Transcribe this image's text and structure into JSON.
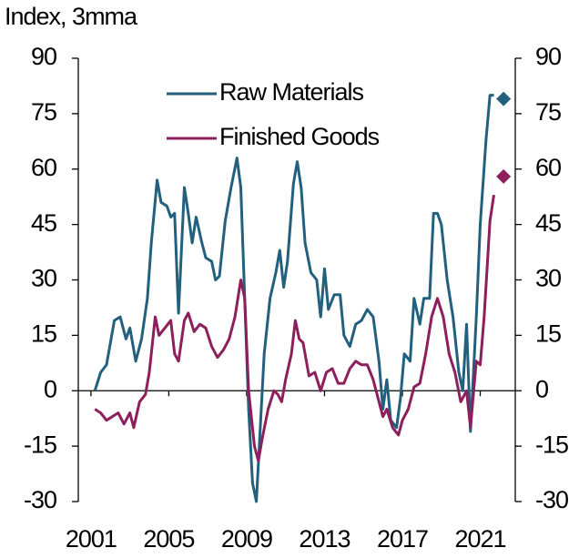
{
  "chart_data": {
    "type": "line",
    "y_label": "Index, 3mma",
    "xlim": [
      2000.35,
      2022.8
    ],
    "xticks": [
      2001,
      2005,
      2009,
      2013,
      2017,
      2021
    ],
    "ylim": [
      -30,
      90
    ],
    "yticks": [
      -30,
      -15,
      0,
      15,
      30,
      45,
      60,
      75,
      90
    ],
    "y2lim": [
      -30,
      90
    ],
    "y2ticks": [
      -30,
      -15,
      0,
      15,
      30,
      45,
      60,
      75,
      90
    ],
    "legend": "top",
    "series": [
      {
        "name": "Raw Materials",
        "color": "#23607d",
        "x": [
          2001.2,
          2001.5,
          2001.8,
          2002.2,
          2002.5,
          2002.8,
          2003.0,
          2003.3,
          2003.6,
          2003.9,
          2004.1,
          2004.4,
          2004.6,
          2004.9,
          2005.1,
          2005.3,
          2005.5,
          2005.8,
          2006.0,
          2006.2,
          2006.4,
          2006.7,
          2006.9,
          2007.2,
          2007.4,
          2007.6,
          2007.9,
          2008.2,
          2008.5,
          2008.7,
          2008.9,
          2009.1,
          2009.3,
          2009.5,
          2009.7,
          2009.9,
          2010.2,
          2010.5,
          2010.7,
          2010.9,
          2011.1,
          2011.4,
          2011.6,
          2011.8,
          2012.0,
          2012.3,
          2012.6,
          2012.8,
          2013.0,
          2013.2,
          2013.5,
          2013.8,
          2014.0,
          2014.3,
          2014.6,
          2014.9,
          2015.2,
          2015.5,
          2015.8,
          2016.0,
          2016.2,
          2016.4,
          2016.7,
          2016.9,
          2017.1,
          2017.4,
          2017.6,
          2017.9,
          2018.1,
          2018.4,
          2018.6,
          2018.8,
          2019.0,
          2019.3,
          2019.6,
          2019.9,
          2020.1,
          2020.3,
          2020.5,
          2020.8,
          2021.0,
          2021.3,
          2021.5,
          2021.7
        ],
        "values": [
          0,
          5,
          7,
          19,
          20,
          14,
          17,
          8,
          14,
          25,
          40,
          57,
          51,
          50,
          47,
          48,
          21,
          55,
          48,
          40,
          47,
          40,
          36,
          35,
          30,
          31,
          46,
          55,
          63,
          55,
          25,
          -5,
          -25,
          -30,
          -10,
          10,
          25,
          32,
          38,
          28,
          35,
          56,
          62,
          55,
          40,
          32,
          30,
          20,
          33,
          22,
          26,
          26,
          15,
          12,
          18,
          19,
          22,
          20,
          8,
          -5,
          3,
          -8,
          -10,
          -2,
          10,
          8,
          25,
          18,
          25,
          25,
          48,
          48,
          45,
          30,
          20,
          5,
          0,
          18,
          -11,
          20,
          45,
          68,
          80,
          80
        ],
        "marker": {
          "x": 2022.2,
          "y": 79
        }
      },
      {
        "name": "Finished Goods",
        "color": "#8c1f5c",
        "x": [
          2001.2,
          2001.5,
          2001.8,
          2002.1,
          2002.4,
          2002.7,
          2003.0,
          2003.2,
          2003.5,
          2003.8,
          2004.0,
          2004.3,
          2004.5,
          2004.8,
          2005.1,
          2005.3,
          2005.5,
          2005.8,
          2006.0,
          2006.3,
          2006.6,
          2006.9,
          2007.2,
          2007.5,
          2007.8,
          2008.1,
          2008.4,
          2008.7,
          2008.9,
          2009.1,
          2009.4,
          2009.6,
          2009.8,
          2010.1,
          2010.4,
          2010.6,
          2010.8,
          2011.0,
          2011.3,
          2011.5,
          2011.7,
          2011.9,
          2012.2,
          2012.5,
          2012.8,
          2013.1,
          2013.4,
          2013.7,
          2014.0,
          2014.3,
          2014.6,
          2014.9,
          2015.2,
          2015.5,
          2015.8,
          2016.0,
          2016.2,
          2016.5,
          2016.8,
          2017.0,
          2017.3,
          2017.6,
          2017.9,
          2018.2,
          2018.5,
          2018.8,
          2019.1,
          2019.4,
          2019.7,
          2020.0,
          2020.3,
          2020.5,
          2020.8,
          2021.0,
          2021.2,
          2021.5,
          2021.7
        ],
        "values": [
          -5,
          -6,
          -8,
          -7,
          -6,
          -9,
          -6,
          -10,
          -3,
          -1,
          5,
          20,
          15,
          17,
          19,
          10,
          8,
          19,
          21,
          16,
          18,
          17,
          12,
          9,
          11,
          14,
          20,
          30,
          25,
          0,
          -15,
          -19,
          -13,
          -5,
          0,
          -1,
          -3,
          3,
          10,
          19,
          14,
          13,
          4,
          5,
          0,
          5,
          6,
          2,
          2,
          6,
          8,
          7,
          7,
          3,
          -3,
          -7,
          -5,
          -10,
          -12,
          -8,
          -5,
          1,
          2,
          10,
          20,
          25,
          20,
          10,
          5,
          -3,
          0,
          -10,
          8,
          7,
          20,
          46,
          53
        ],
        "marker": {
          "x": 2022.2,
          "y": 58
        }
      }
    ]
  }
}
